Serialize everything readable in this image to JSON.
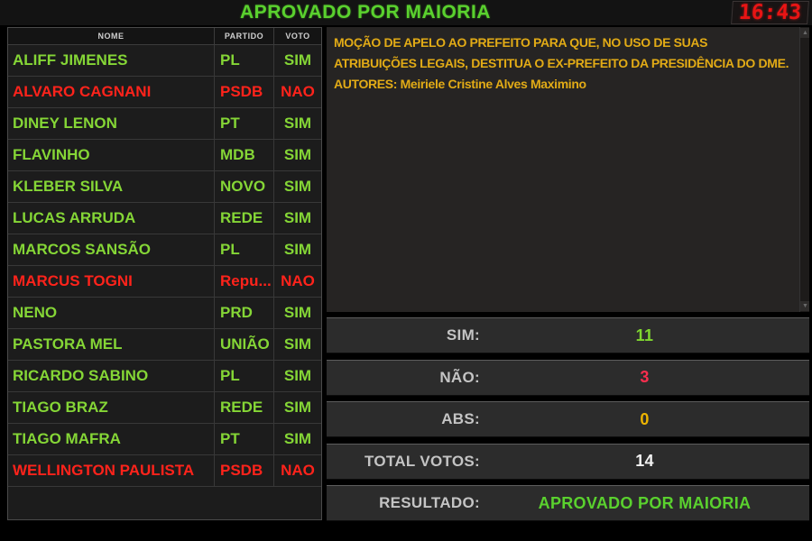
{
  "header": {
    "title": "APROVADO POR MAIORIA",
    "clock": "16:43"
  },
  "voting_table": {
    "columns": [
      "NOME",
      "PARTIDO",
      "VOTO"
    ],
    "rows": [
      {
        "name": "ALIFF JIMENES",
        "party": "PL",
        "vote": "SIM",
        "color": "green"
      },
      {
        "name": "ALVARO CAGNANI",
        "party": "PSDB",
        "vote": "NAO",
        "color": "red"
      },
      {
        "name": "DINEY LENON",
        "party": "PT",
        "vote": "SIM",
        "color": "green"
      },
      {
        "name": "FLAVINHO",
        "party": "MDB",
        "vote": "SIM",
        "color": "green"
      },
      {
        "name": "KLEBER SILVA",
        "party": "NOVO",
        "vote": "SIM",
        "color": "green"
      },
      {
        "name": "LUCAS ARRUDA",
        "party": "REDE",
        "vote": "SIM",
        "color": "green"
      },
      {
        "name": "MARCOS SANSÃO",
        "party": "PL",
        "vote": "SIM",
        "color": "green"
      },
      {
        "name": "MARCUS TOGNI",
        "party": "Repu...",
        "vote": "NAO",
        "color": "red"
      },
      {
        "name": "NENO",
        "party": "PRD",
        "vote": "SIM",
        "color": "green"
      },
      {
        "name": "PASTORA MEL",
        "party": "UNIÃO",
        "vote": "SIM",
        "color": "green"
      },
      {
        "name": "RICARDO SABINO",
        "party": "PL",
        "vote": "SIM",
        "color": "green"
      },
      {
        "name": "TIAGO BRAZ",
        "party": "REDE",
        "vote": "SIM",
        "color": "green"
      },
      {
        "name": "TIAGO MAFRA",
        "party": "PT",
        "vote": "SIM",
        "color": "green"
      },
      {
        "name": "WELLINGTON PAULISTA",
        "party": "PSDB",
        "vote": "NAO",
        "color": "red"
      }
    ]
  },
  "motion": {
    "lines": [
      "MOÇÃO DE APELO AO PREFEITO PARA QUE, NO USO DE SUAS",
      "ATRIBUIÇÕES LEGAIS, DESTITUA O EX-PREFEITO DA PRESIDÊNCIA DO DME.",
      "AUTORES: Meiriele Cristine Alves Maximino"
    ],
    "scroll_up_glyph": "▲",
    "scroll_down_glyph": "▼"
  },
  "results": {
    "rows": [
      {
        "label": "SIM:",
        "value": "11",
        "value_color": "#7fd62f"
      },
      {
        "label": "NÃO:",
        "value": "3",
        "value_color": "#fa2e4e"
      },
      {
        "label": "ABS:",
        "value": "0",
        "value_color": "#edb400"
      },
      {
        "label": "TOTAL VOTOS:",
        "value": "14",
        "value_color": "#f2f2f2"
      },
      {
        "label": "RESULTADO:",
        "value": "APROVADO POR MAIORIA",
        "value_color": "#5ad12e"
      }
    ]
  },
  "colors": {
    "vote_yes": "#85d636",
    "vote_no": "#ff231b",
    "motion_text": "#e2ab16",
    "clock": "#e81414",
    "title": "#5ad12e"
  }
}
